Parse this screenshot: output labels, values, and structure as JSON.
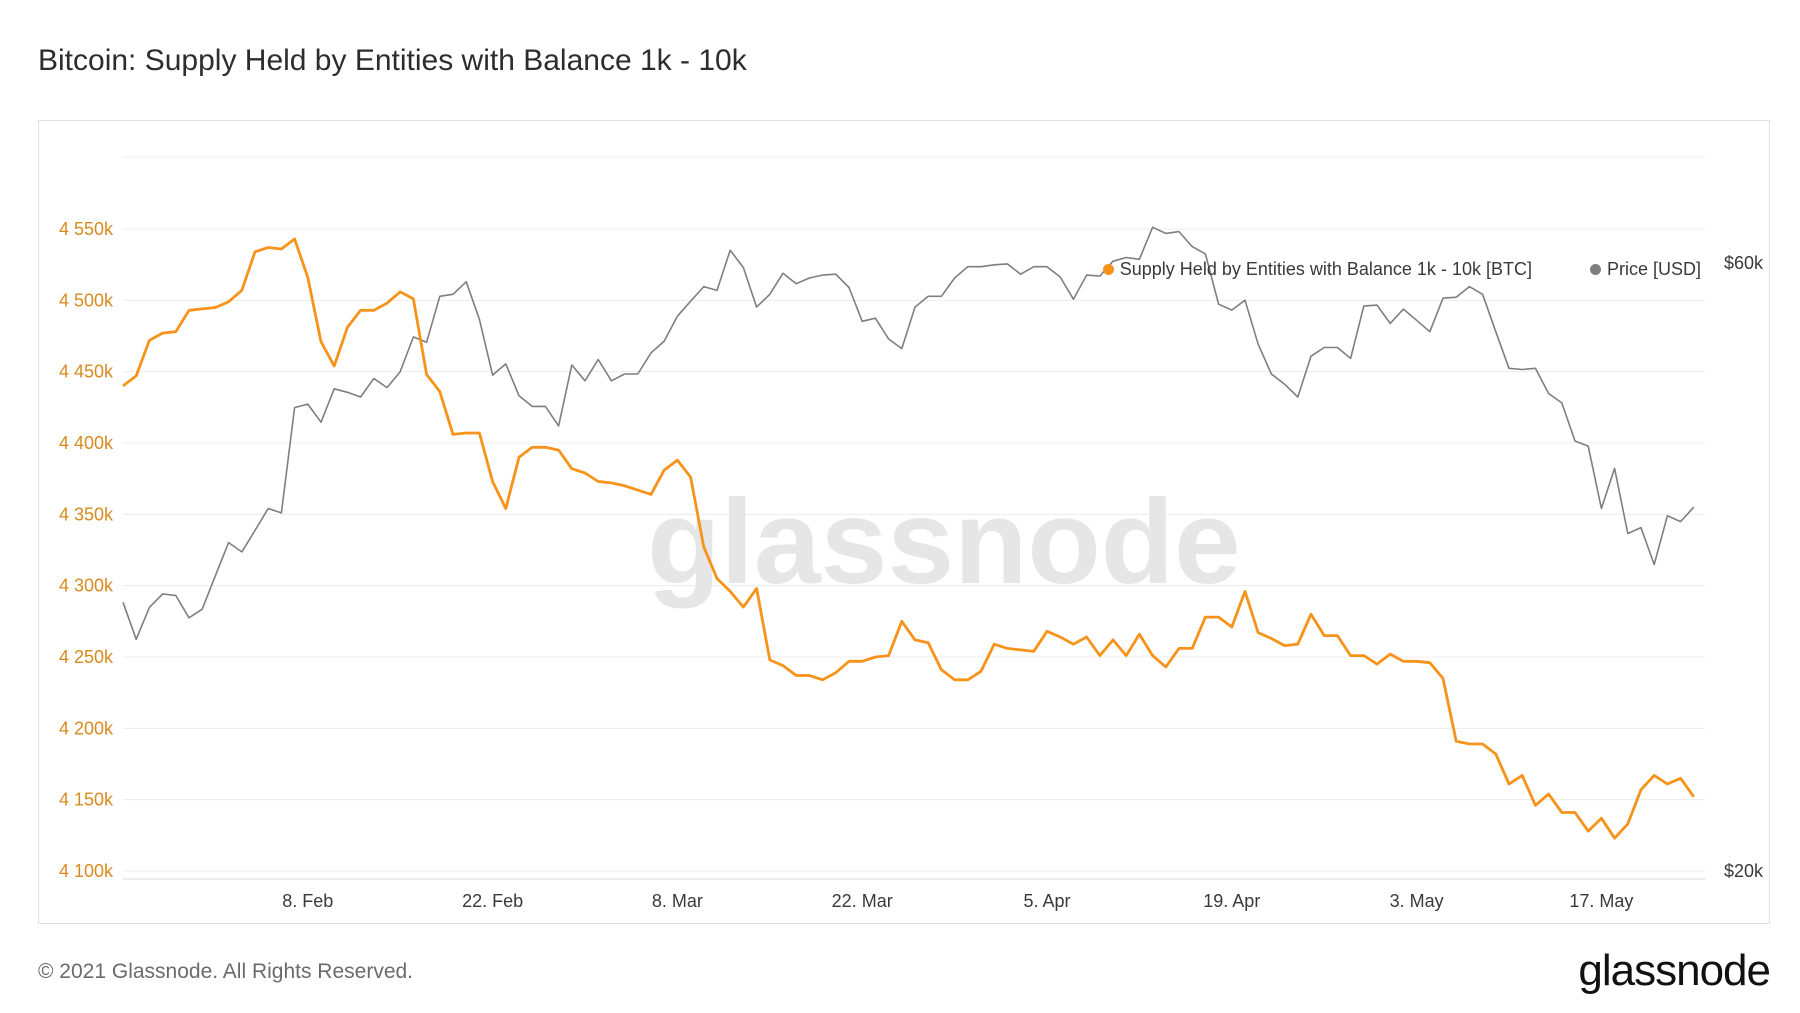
{
  "title": "Bitcoin: Supply Held by Entities with Balance 1k - 10k",
  "footer": {
    "copyright": "© 2021 Glassnode. All Rights Reserved.",
    "logo": "glassnode"
  },
  "watermark": "glassnode",
  "colors": {
    "supply": "#f7931a",
    "price": "#7f7f7f",
    "grid": "#ececec",
    "left_axis": "#d98a1f"
  },
  "chart_data": {
    "type": "line",
    "x_start": "2021-01-25",
    "x_ticks": [
      "8. Feb",
      "22. Feb",
      "8. Mar",
      "22. Mar",
      "5. Apr",
      "19. Apr",
      "3. May",
      "17. May"
    ],
    "left_axis": {
      "ticks": [
        "4 100k",
        "4 150k",
        "4 200k",
        "4 250k",
        "4 300k",
        "4 350k",
        "4 400k",
        "4 450k",
        "4 500k",
        "4 550k"
      ],
      "ylim": [
        4100000,
        4550000
      ]
    },
    "right_axis": {
      "ticks": [
        "$20k",
        "$60k"
      ],
      "scale": "log"
    },
    "series": [
      {
        "name": "Supply Held by Entities with Balance 1k - 10k [BTC]",
        "axis": "left",
        "values": [
          4440000,
          4447000,
          4472000,
          4477000,
          4478000,
          4493000,
          4494000,
          4495000,
          4499000,
          4507000,
          4534000,
          4537000,
          4536000,
          4543000,
          4516000,
          4471000,
          4454000,
          4481000,
          4493000,
          4493000,
          4498000,
          4506000,
          4501000,
          4448000,
          4436000,
          4406000,
          4407000,
          4407000,
          4373000,
          4354000,
          4390000,
          4397000,
          4397000,
          4395000,
          4382000,
          4379000,
          4373000,
          4372000,
          4370000,
          4367000,
          4364000,
          4381000,
          4388000,
          4376000,
          4327000,
          4305000,
          4296000,
          4285000,
          4298000,
          4248000,
          4244000,
          4237000,
          4237000,
          4234000,
          4239000,
          4247000,
          4247000,
          4250000,
          4251000,
          4275000,
          4262000,
          4260000,
          4241000,
          4234000,
          4234000,
          4240000,
          4259000,
          4256000,
          4255000,
          4254000,
          4268000,
          4264000,
          4259000,
          4264000,
          4251000,
          4262000,
          4251000,
          4266000,
          4251000,
          4243000,
          4256000,
          4256000,
          4278000,
          4278000,
          4271000,
          4296000,
          4267000,
          4263000,
          4258000,
          4259000,
          4280000,
          4265000,
          4265000,
          4251000,
          4251000,
          4245000,
          4252000,
          4247000,
          4247000,
          4246000,
          4235000,
          4191000,
          4189000,
          4189000,
          4182000,
          4161000,
          4167000,
          4146000,
          4154000,
          4141000,
          4141000,
          4128000,
          4137000,
          4123000,
          4133000,
          4157000,
          4167000,
          4161000,
          4165000,
          4152000
        ]
      },
      {
        "name": "Price [USD]",
        "axis": "right",
        "values": [
          32500,
          30400,
          32200,
          33000,
          32900,
          31600,
          32100,
          34100,
          36200,
          35600,
          37000,
          38500,
          38200,
          46200,
          46500,
          45000,
          47800,
          47500,
          47100,
          48700,
          47900,
          49300,
          52500,
          52000,
          56500,
          56700,
          58000,
          54200,
          49000,
          50000,
          47200,
          46300,
          46300,
          44700,
          49900,
          48500,
          50400,
          48500,
          49100,
          49100,
          51000,
          52100,
          54500,
          56000,
          57500,
          57100,
          61400,
          59500,
          55400,
          56700,
          58900,
          57800,
          58400,
          58700,
          58800,
          57400,
          54000,
          54300,
          52300,
          51400,
          55400,
          56500,
          56500,
          58400,
          59600,
          59600,
          59800,
          59900,
          58800,
          59600,
          59600,
          58500,
          56200,
          58700,
          58600,
          60200,
          60600,
          60400,
          64000,
          63300,
          63500,
          61800,
          61000,
          55700,
          55100,
          56100,
          51800,
          49100,
          48200,
          47100,
          50700,
          51500,
          51500,
          50500,
          55500,
          55600,
          53800,
          55200,
          54100,
          53000,
          56300,
          56400,
          57500,
          56700,
          53000,
          49600,
          49500,
          49600,
          47400,
          46600,
          43500,
          43100,
          38500,
          41400,
          36800,
          37200,
          34800,
          38000,
          37600,
          38600
        ]
      }
    ]
  }
}
